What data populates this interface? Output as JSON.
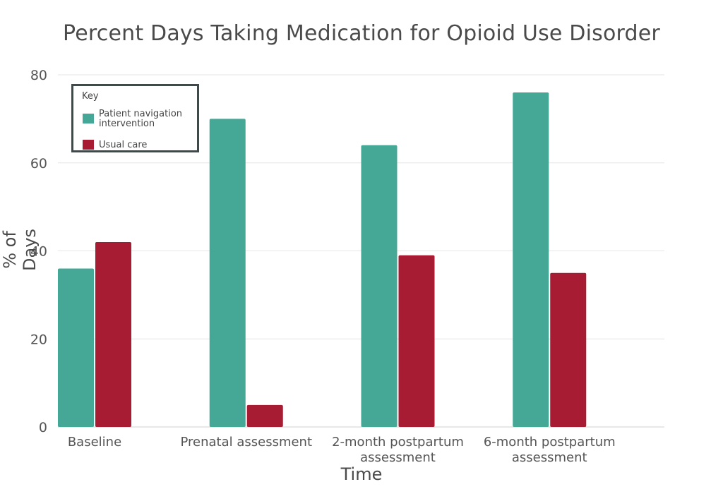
{
  "chart_data": {
    "type": "bar",
    "title": "Percent Days Taking Medication for Opioid Use Disorder",
    "xlabel": "Time",
    "ylabel": "% of Days",
    "ylim": [
      0,
      80
    ],
    "yticks": [
      0,
      20,
      40,
      60,
      80
    ],
    "grid": true,
    "categories": [
      [
        "Baseline"
      ],
      [
        "Prenatal assessment"
      ],
      [
        "2-month postpartum",
        "assessment"
      ],
      [
        "6-month postpartum",
        "assessment"
      ]
    ],
    "series": [
      {
        "name": "Patient navigation intervention",
        "color": "#45a896",
        "values": [
          36,
          70,
          64,
          76
        ]
      },
      {
        "name": "Usual care",
        "color": "#a71c33",
        "values": [
          42,
          5,
          39,
          35
        ]
      }
    ],
    "legend": {
      "title": "Key",
      "position": "top-left",
      "items": [
        {
          "label": "Patient navigation intervention",
          "color": "#45a896"
        },
        {
          "label": "Usual care",
          "color": "#a71c33"
        }
      ]
    }
  }
}
